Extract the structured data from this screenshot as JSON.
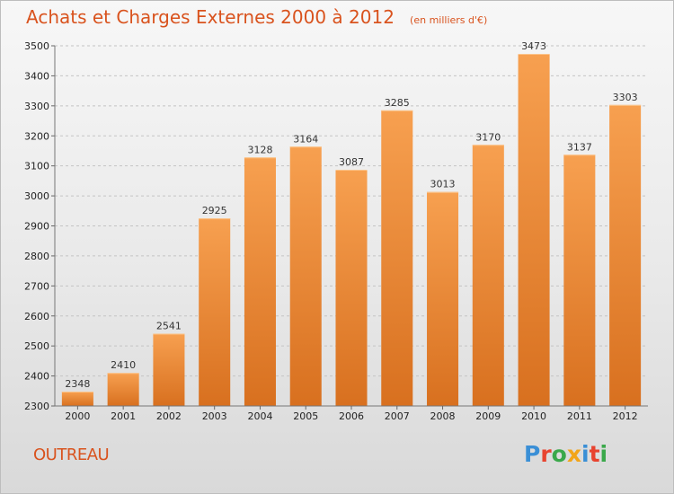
{
  "header": {
    "title": "Achats et Charges Externes 2000 à 2012",
    "subtitle": "(en milliers d'€)"
  },
  "footer": {
    "place": "OUTREAU",
    "logo_text": "Proxiti",
    "logo_letter_colors": [
      "#3a8fd6",
      "#e8432f",
      "#3aa84a",
      "#f2a51a",
      "#3a8fd6",
      "#e8432f",
      "#3aa84a"
    ]
  },
  "chart_data": {
    "type": "bar",
    "title": "Achats et Charges Externes 2000 à 2012",
    "subtitle": "(en milliers d'€)",
    "categories": [
      "2000",
      "2001",
      "2002",
      "2003",
      "2004",
      "2005",
      "2006",
      "2007",
      "2008",
      "2009",
      "2010",
      "2011",
      "2012"
    ],
    "values": [
      2348,
      2410,
      2541,
      2925,
      3128,
      3164,
      3087,
      3285,
      3013,
      3170,
      3473,
      3137,
      3303
    ],
    "ylim": [
      2300,
      3500
    ],
    "yticks": [
      2300,
      2400,
      2500,
      2600,
      2700,
      2800,
      2900,
      3000,
      3100,
      3200,
      3300,
      3400,
      3500
    ],
    "grid": true,
    "bar_color_top": "#f7a050",
    "bar_color_bottom": "#d8701f"
  }
}
